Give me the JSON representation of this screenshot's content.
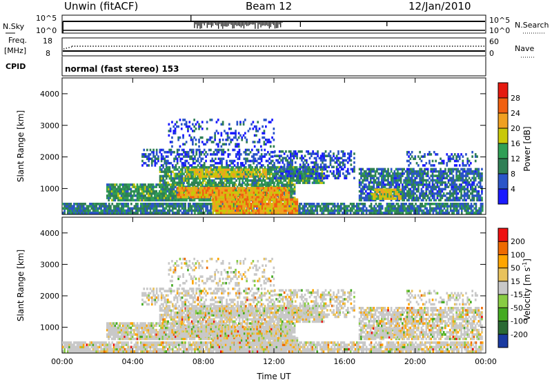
{
  "header": {
    "station": "Unwin (fitACF)",
    "beam": "Beam 12",
    "date": "12/Jan/2010"
  },
  "nsky": {
    "left_label": "N.Sky",
    "right_label": "N.Search",
    "ticks": [
      "10^5",
      "10^0"
    ],
    "right_ticks": [
      "10^5",
      "10^0"
    ]
  },
  "freq": {
    "left_label_1": "Freq.",
    "left_label_2": "[MHz]",
    "right_label": "Nave",
    "left_ticks": [
      "18",
      "8"
    ],
    "right_ticks": [
      "60",
      "0"
    ]
  },
  "cpid": {
    "label": "CPID",
    "mode": "normal (fast stereo) 153"
  },
  "colors": {
    "power_scale": [
      "#1a1aff",
      "#2b55c8",
      "#2f7f55",
      "#2f9f55",
      "#c8c80a",
      "#f0a020",
      "#f06010",
      "#e51a10"
    ],
    "velocity_scale": [
      "#ee1111",
      "#ee6a00",
      "#ffa500",
      "#e8c25c",
      "#c8c8c8",
      "#88cc44",
      "#44aa22",
      "#2a6a33",
      "#1a3aa0"
    ]
  },
  "chart_data": [
    {
      "type": "heatmap",
      "name": "Power",
      "ylabel": "Slant Range [km]",
      "ylim": [
        180,
        4500
      ],
      "yticks": [
        "4000",
        "3000",
        "2000",
        "1000"
      ],
      "yticks_values": [
        4000,
        3000,
        2000,
        1000
      ],
      "xlim_hours": [
        0,
        24
      ],
      "colorbar": {
        "label": "Power [dB]",
        "ticks": [
          "28",
          "24",
          "20",
          "16",
          "12",
          "8",
          "4"
        ],
        "range": [
          0,
          32
        ]
      }
    },
    {
      "type": "heatmap",
      "name": "Velocity",
      "ylabel": "Slant Range [km]",
      "ylim": [
        180,
        4500
      ],
      "yticks": [
        "4000",
        "3000",
        "2000",
        "1000"
      ],
      "yticks_values": [
        4000,
        3000,
        2000,
        1000
      ],
      "xlim_hours": [
        0,
        24
      ],
      "xlabel": "Time UT",
      "xticks": [
        "00:00",
        "04:00",
        "08:00",
        "12:00",
        "16:00",
        "20:00",
        "00:00"
      ],
      "xticks_hours": [
        0,
        4,
        8,
        12,
        16,
        20,
        24
      ],
      "colorbar": {
        "label_main": "Velocity",
        "label_unit": "[m s",
        "label_exp": "-1",
        "label_end": "]",
        "ticks": [
          "200",
          "100",
          "50",
          "15",
          "-15",
          "-50",
          "-100",
          "-200"
        ]
      }
    }
  ]
}
